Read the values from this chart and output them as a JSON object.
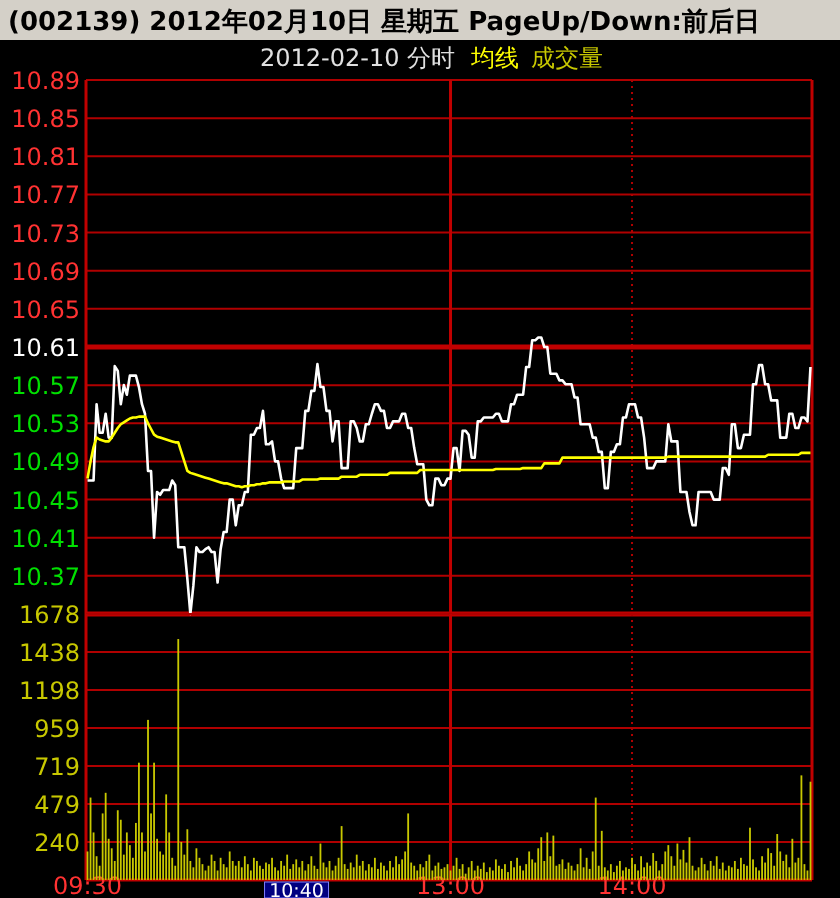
{
  "chart_data": [
    {
      "type": "line",
      "title": "(002139) 2012年02月10日 星期五 PageUp/Down:前后日",
      "subtitle": "2012-02-10 分时",
      "categories": [
        "09:30",
        null,
        null,
        null,
        null,
        null,
        null,
        null,
        null,
        null,
        null,
        null,
        null,
        null,
        null,
        null,
        null,
        null,
        null,
        null,
        null,
        null,
        null,
        null,
        null,
        null,
        null,
        null,
        null,
        null,
        null,
        null,
        null,
        null,
        null,
        null,
        null,
        null,
        null,
        null,
        null,
        null,
        null,
        null,
        null,
        null,
        null,
        null,
        null,
        null,
        null,
        null,
        null,
        null,
        null,
        null,
        null,
        null,
        null,
        null,
        null,
        null,
        null,
        null,
        null,
        null,
        null,
        null,
        null,
        null,
        null,
        null,
        null,
        null,
        null,
        null,
        null,
        null,
        null,
        null,
        null,
        null,
        null,
        null,
        null,
        null,
        null,
        null,
        null,
        null,
        null,
        null,
        null,
        null,
        null,
        null,
        null,
        null,
        null,
        null,
        null,
        null,
        null,
        null,
        null,
        null,
        null,
        null,
        null,
        null,
        null,
        null,
        null,
        null,
        null,
        null,
        null,
        null,
        null,
        null,
        "13:00",
        null,
        null,
        null,
        null,
        null,
        null,
        null,
        null,
        null,
        null,
        null,
        null,
        null,
        null,
        null,
        null,
        null,
        null,
        null,
        null,
        null,
        null,
        null,
        null,
        null,
        null,
        null,
        null,
        null,
        null,
        null,
        null,
        null,
        null,
        null,
        null,
        null,
        null,
        null,
        null,
        null,
        null,
        null,
        null,
        null,
        null,
        null,
        null,
        null,
        null,
        null,
        null,
        null,
        null,
        null,
        null,
        null,
        null,
        null,
        "14:00",
        null,
        null,
        null,
        null,
        null,
        null,
        null,
        null,
        null,
        null,
        null,
        null,
        null,
        null,
        null,
        null,
        null,
        null,
        null,
        null,
        null,
        null,
        null,
        null,
        null,
        null,
        null,
        null,
        null,
        null,
        null,
        null,
        null,
        null,
        null,
        null,
        null,
        null,
        null,
        null,
        null,
        null,
        null,
        null,
        null,
        null,
        null,
        null,
        null,
        null,
        null,
        null,
        null,
        null,
        null,
        null,
        null,
        null,
        null
      ],
      "series": [
        {
          "color": "#ffffff",
          "values": [
            10.47,
            10.47,
            10.47,
            10.55,
            10.52,
            10.52,
            10.54,
            10.515,
            10.515,
            10.59,
            10.585,
            10.55,
            10.57,
            10.56,
            10.58,
            10.58,
            10.58,
            10.568,
            10.55,
            10.54,
            10.48,
            10.48,
            10.41,
            10.458,
            10.455,
            10.46,
            10.46,
            10.46,
            10.47,
            10.465,
            10.4,
            10.4,
            10.4,
            10.367,
            10.33,
            10.36,
            10.4,
            10.395,
            10.395,
            10.398,
            10.4,
            10.395,
            10.395,
            10.363,
            10.398,
            10.416,
            10.416,
            10.45,
            10.45,
            10.423,
            10.444,
            10.444,
            10.458,
            10.458,
            10.518,
            10.518,
            10.525,
            10.525,
            10.543,
            10.508,
            10.508,
            10.511,
            10.49,
            10.49,
            10.472,
            10.462,
            10.462,
            10.462,
            10.462,
            10.504,
            10.504,
            10.504,
            10.543,
            10.543,
            10.564,
            10.564,
            10.592,
            10.568,
            10.568,
            10.543,
            10.543,
            10.511,
            10.532,
            10.532,
            10.483,
            10.483,
            10.483,
            10.532,
            10.532,
            10.525,
            10.511,
            10.511,
            10.529,
            10.529,
            10.54,
            10.55,
            10.55,
            10.543,
            10.543,
            10.525,
            10.525,
            10.532,
            10.532,
            10.532,
            10.54,
            10.54,
            10.525,
            10.525,
            10.504,
            10.487,
            10.487,
            10.487,
            10.45,
            10.444,
            10.444,
            10.472,
            10.472,
            10.465,
            10.465,
            10.472,
            10.472,
            10.504,
            10.504,
            10.48,
            10.522,
            10.522,
            10.518,
            10.494,
            10.494,
            10.532,
            10.532,
            10.536,
            10.536,
            10.536,
            10.536,
            10.54,
            10.54,
            10.532,
            10.532,
            10.532,
            10.55,
            10.55,
            10.56,
            10.56,
            10.56,
            10.589,
            10.589,
            10.617,
            10.617,
            10.62,
            10.62,
            10.61,
            10.61,
            10.582,
            10.582,
            10.582,
            10.575,
            10.575,
            10.571,
            10.571,
            10.571,
            10.557,
            10.557,
            10.529,
            10.529,
            10.529,
            10.529,
            10.515,
            10.515,
            10.5,
            10.5,
            10.462,
            10.462,
            10.5,
            10.5,
            10.508,
            10.508,
            10.536,
            10.536,
            10.55,
            10.55,
            10.55,
            10.536,
            10.536,
            10.515,
            10.483,
            10.483,
            10.483,
            10.49,
            10.49,
            10.49,
            10.49,
            10.529,
            10.511,
            10.511,
            10.511,
            10.458,
            10.458,
            10.458,
            10.437,
            10.423,
            10.423,
            10.458,
            10.458,
            10.458,
            10.458,
            10.458,
            10.45,
            10.45,
            10.45,
            10.483,
            10.483,
            10.476,
            10.529,
            10.529,
            10.504,
            10.504,
            10.518,
            10.518,
            10.518,
            10.571,
            10.571,
            10.591,
            10.591,
            10.571,
            10.571,
            10.554,
            10.554,
            10.554,
            10.515,
            10.515,
            10.515,
            10.54,
            10.54,
            10.525,
            10.525,
            10.536,
            10.536,
            10.532,
            10.589
          ]
        },
        {
          "name": "均线",
          "color": "#ffff00",
          "values": [
            10.472,
            10.49,
            10.505,
            10.515,
            10.513,
            10.512,
            10.511,
            10.511,
            10.515,
            10.52,
            10.525,
            10.529,
            10.531,
            10.533,
            10.535,
            10.536,
            10.536,
            10.537,
            10.537,
            10.537,
            10.53,
            10.524,
            10.518,
            10.516,
            10.515,
            10.514,
            10.513,
            10.512,
            10.511,
            10.51,
            10.51,
            10.5,
            10.49,
            10.48,
            10.478,
            10.477,
            10.476,
            10.475,
            10.474,
            10.473,
            10.472,
            10.471,
            10.47,
            10.469,
            10.468,
            10.467,
            10.467,
            10.466,
            10.465,
            10.464,
            10.464,
            10.463,
            10.464,
            10.464,
            10.465,
            10.465,
            10.466,
            10.466,
            10.467,
            10.467,
            10.468,
            10.468,
            10.468,
            10.468,
            10.468,
            10.469,
            10.469,
            10.469,
            10.469,
            10.469,
            10.469,
            10.471,
            10.471,
            10.471,
            10.471,
            10.471,
            10.471,
            10.472,
            10.472,
            10.472,
            10.472,
            10.472,
            10.472,
            10.472,
            10.474,
            10.474,
            10.474,
            10.474,
            10.474,
            10.474,
            10.476,
            10.476,
            10.476,
            10.476,
            10.476,
            10.476,
            10.476,
            10.476,
            10.476,
            10.476,
            10.478,
            10.478,
            10.478,
            10.478,
            10.478,
            10.478,
            10.478,
            10.478,
            10.478,
            10.478,
            10.481,
            10.481,
            10.481,
            10.481,
            10.481,
            10.481,
            10.481,
            10.481,
            10.481,
            10.481,
            10.481,
            10.481,
            10.481,
            10.481,
            10.481,
            10.481,
            10.481,
            10.481,
            10.481,
            10.481,
            10.481,
            10.481,
            10.481,
            10.481,
            10.481,
            10.482,
            10.482,
            10.482,
            10.482,
            10.482,
            10.482,
            10.482,
            10.482,
            10.482,
            10.483,
            10.483,
            10.483,
            10.483,
            10.483,
            10.483,
            10.483,
            10.488,
            10.488,
            10.488,
            10.488,
            10.488,
            10.488,
            10.494,
            10.494,
            10.494,
            10.494,
            10.494,
            10.494,
            10.494,
            10.494,
            10.494,
            10.494,
            10.494,
            10.494,
            10.494,
            10.494,
            10.494,
            10.494,
            10.494,
            10.494,
            10.494,
            10.494,
            10.494,
            10.494,
            10.494,
            10.494,
            10.494,
            10.494,
            10.494,
            10.494,
            10.494,
            10.494,
            10.494,
            10.494,
            10.494,
            10.494,
            10.494,
            10.495,
            10.495,
            10.495,
            10.495,
            10.495,
            10.495,
            10.495,
            10.495,
            10.495,
            10.495,
            10.495,
            10.495,
            10.495,
            10.495,
            10.495,
            10.495,
            10.495,
            10.495,
            10.495,
            10.495,
            10.495,
            10.495,
            10.495,
            10.495,
            10.495,
            10.495,
            10.495,
            10.495,
            10.495,
            10.495,
            10.495,
            10.495,
            10.495,
            10.497,
            10.497,
            10.497,
            10.497,
            10.497,
            10.497,
            10.497,
            10.497,
            10.497,
            10.497,
            10.497,
            10.499,
            10.499,
            10.499,
            10.499
          ]
        }
      ],
      "ylim": [
        10.33,
        10.89
      ],
      "yticks": [
        10.89,
        10.85,
        10.81,
        10.77,
        10.73,
        10.69,
        10.65,
        10.61,
        10.57,
        10.53,
        10.49,
        10.45,
        10.41,
        10.37
      ],
      "ref_lines": [
        {
          "axis": "y",
          "value": 10.61,
          "color": "#c00000"
        },
        {
          "axis": "x",
          "value": "13:00",
          "color": "#c00000"
        }
      ],
      "grid": true,
      "legend": "top right",
      "tick_labels": "y"
    },
    {
      "type": "bar",
      "categories": [
        "09:30",
        null,
        null,
        null,
        null,
        null,
        null,
        null,
        null,
        null,
        null,
        null,
        null,
        null,
        null,
        null,
        null,
        null,
        null,
        null,
        null,
        null,
        null,
        null,
        null,
        null,
        null,
        null,
        null,
        null,
        null,
        null,
        null,
        null,
        null,
        null,
        null,
        null,
        null,
        null,
        null,
        null,
        null,
        null,
        null,
        null,
        null,
        null,
        null,
        null,
        null,
        null,
        null,
        null,
        null,
        null,
        null,
        null,
        null,
        null,
        null,
        null,
        null,
        null,
        null,
        null,
        null,
        null,
        null,
        null,
        null,
        null,
        null,
        null,
        null,
        null,
        null,
        null,
        null,
        null,
        null,
        null,
        null,
        null,
        null,
        null,
        null,
        null,
        null,
        null,
        null,
        null,
        null,
        null,
        null,
        null,
        null,
        null,
        null,
        null,
        null,
        null,
        null,
        null,
        null,
        null,
        null,
        null,
        null,
        null,
        null,
        null,
        null,
        null,
        null,
        null,
        null,
        null,
        null,
        null,
        "13:00",
        null,
        null,
        null,
        null,
        null,
        null,
        null,
        null,
        null,
        null,
        null,
        null,
        null,
        null,
        null,
        null,
        null,
        null,
        null,
        null,
        null,
        null,
        null,
        null,
        null,
        null,
        null,
        null,
        null,
        null,
        null,
        null,
        null,
        null,
        null,
        null,
        null,
        null,
        null,
        null,
        null,
        null,
        null,
        null,
        null,
        null,
        null,
        null,
        null,
        null,
        null,
        null,
        null,
        null,
        null,
        null,
        null,
        null,
        null,
        "14:00",
        null,
        null,
        null,
        null,
        null,
        null,
        null,
        null,
        null,
        null,
        null,
        null,
        null,
        null,
        null,
        null,
        null,
        null,
        null,
        null,
        null,
        null,
        null,
        null,
        null,
        null,
        null,
        null,
        null,
        null,
        null,
        null,
        null,
        null,
        null,
        null,
        null,
        null,
        null,
        null,
        null,
        null,
        null,
        null,
        null,
        null,
        null,
        null,
        null,
        null,
        null,
        null,
        null,
        null,
        null,
        null,
        null,
        null,
        null
      ],
      "series": [
        {
          "name": "成交量",
          "color": "#c8c800",
          "values": [
            180,
            520,
            300,
            150,
            90,
            420,
            550,
            260,
            200,
            120,
            440,
            380,
            160,
            300,
            220,
            140,
            360,
            740,
            300,
            180,
            1010,
            420,
            740,
            260,
            180,
            160,
            540,
            300,
            140,
            90,
            1520,
            240,
            160,
            320,
            120,
            80,
            200,
            140,
            100,
            60,
            90,
            160,
            120,
            60,
            140,
            100,
            80,
            180,
            120,
            90,
            120,
            80,
            150,
            100,
            60,
            140,
            120,
            90,
            70,
            110,
            100,
            140,
            80,
            60,
            120,
            90,
            160,
            70,
            100,
            130,
            80,
            120,
            60,
            100,
            150,
            90,
            70,
            230,
            110,
            80,
            120,
            60,
            90,
            140,
            340,
            100,
            70,
            110,
            80,
            160,
            90,
            120,
            60,
            100,
            80,
            140,
            70,
            110,
            90,
            60,
            120,
            80,
            150,
            100,
            130,
            180,
            420,
            110,
            90,
            60,
            100,
            80,
            120,
            160,
            60,
            90,
            110,
            70,
            80,
            100,
            60,
            90,
            140,
            70,
            100,
            40,
            80,
            120,
            60,
            90,
            70,
            110,
            50,
            80,
            60,
            130,
            90,
            70,
            100,
            50,
            120,
            80,
            140,
            90,
            60,
            100,
            180,
            130,
            110,
            200,
            270,
            120,
            300,
            150,
            280,
            90,
            100,
            130,
            70,
            110,
            90,
            60,
            100,
            200,
            80,
            140,
            70,
            180,
            520,
            90,
            310,
            80,
            60,
            100,
            50,
            90,
            120,
            60,
            80,
            70,
            140,
            100,
            60,
            150,
            80,
            110,
            90,
            170,
            120,
            60,
            100,
            180,
            220,
            150,
            90,
            230,
            130,
            190,
            110,
            270,
            90,
            60,
            80,
            140,
            100,
            60,
            120,
            90,
            150,
            70,
            110,
            60,
            90,
            80,
            120,
            70,
            140,
            100,
            90,
            330,
            130,
            80,
            60,
            150,
            110,
            200,
            170,
            90,
            290,
            180,
            120,
            160,
            80,
            260,
            110,
            140,
            660,
            100,
            60,
            620
          ]
        }
      ],
      "ylim": [
        0,
        1678
      ],
      "yticks": [
        240,
        479,
        719,
        959,
        1198,
        1438,
        1678
      ],
      "ref_lines": [
        {
          "axis": "x",
          "value": "13:00",
          "color": "#c00000"
        }
      ],
      "annotations": [
        "10:40"
      ],
      "grid": true,
      "legend": "top right"
    }
  ]
}
